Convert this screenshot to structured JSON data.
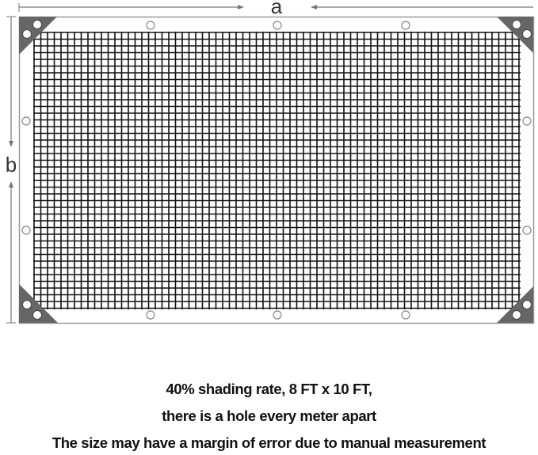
{
  "dimensions": {
    "width_label": "a",
    "height_label": "b"
  },
  "captions": [
    "40% shading  rate, 8 FT x 10 FT,",
    "there is a hole every meter apart",
    "The size  may  have a margin of error due to manual measurement"
  ],
  "colors": {
    "mesh": "#111111",
    "corner": "#666666",
    "border": "#999999"
  }
}
